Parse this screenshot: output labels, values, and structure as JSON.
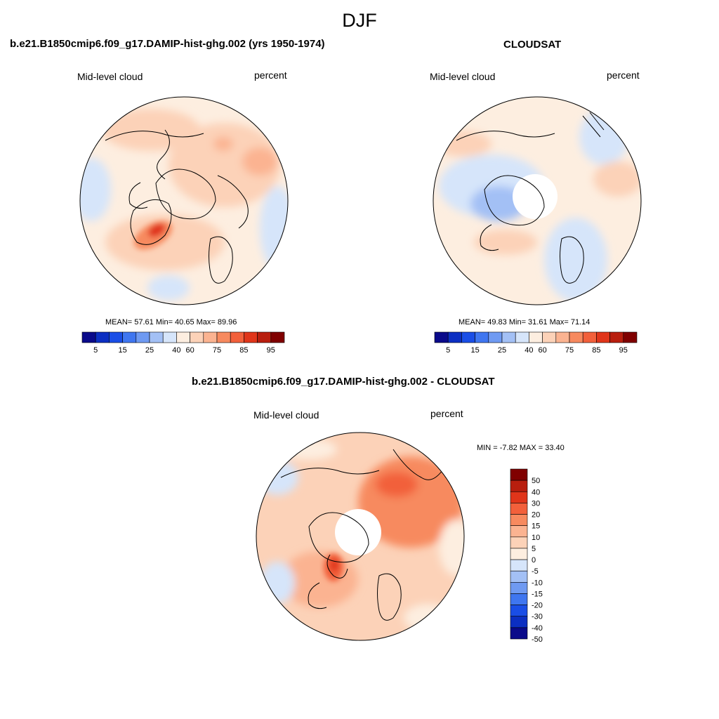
{
  "figure": {
    "season": "DJF"
  },
  "panels": {
    "model": {
      "title": "b.e21.B1850cmip6.f09_g17.DAMIP-hist-ghg.002 (yrs 1950-1974)",
      "left_label": "Mid-level cloud",
      "right_label": "percent",
      "stats": "MEAN=  57.61  Min=  40.65  Max=  89.96"
    },
    "obs": {
      "title": "CLOUDSAT",
      "left_label": "Mid-level cloud",
      "right_label": "percent",
      "stats": "MEAN=  49.83  Min=  31.61  Max=  71.14"
    },
    "diff": {
      "title": "b.e21.B1850cmip6.f09_g17.DAMIP-hist-ghg.002 - CLOUDSAT",
      "left_label": "Mid-level cloud",
      "right_label": "percent",
      "minmax": "MIN =  -7.82 MAX =  33.40"
    }
  },
  "chart_data": [
    {
      "type": "heatmap",
      "title": "b.e21.B1850cmip6.f09_g17.DAMIP-hist-ghg.002 (yrs 1950-1974)",
      "projection": "north polar stereographic",
      "variable": "Mid-level cloud",
      "units": "percent",
      "mean": 57.61,
      "min": 40.65,
      "max": 89.96,
      "colorbar_ticks": [
        "5",
        "15",
        "25",
        "40",
        "60",
        "75",
        "85",
        "95"
      ],
      "colorbar_colors": [
        "#0a0a8a",
        "#0c2fc2",
        "#1a4ee6",
        "#3f76f0",
        "#6f9af2",
        "#a3c0f5",
        "#d6e5fa",
        "#fdeee0",
        "#fcd2b8",
        "#fbb391",
        "#f78a5f",
        "#f2603b",
        "#e0351a",
        "#b81e0e",
        "#800000"
      ]
    },
    {
      "type": "heatmap",
      "title": "CLOUDSAT",
      "projection": "north polar stereographic",
      "variable": "Mid-level cloud",
      "units": "percent",
      "mean": 49.83,
      "min": 31.61,
      "max": 71.14,
      "colorbar_ticks": [
        "5",
        "15",
        "25",
        "40",
        "60",
        "75",
        "85",
        "95"
      ],
      "colorbar_colors": [
        "#0a0a8a",
        "#0c2fc2",
        "#1a4ee6",
        "#3f76f0",
        "#6f9af2",
        "#a3c0f5",
        "#d6e5fa",
        "#fdeee0",
        "#fcd2b8",
        "#fbb391",
        "#f78a5f",
        "#f2603b",
        "#e0351a",
        "#b81e0e",
        "#800000"
      ]
    },
    {
      "type": "heatmap",
      "title": "b.e21.B1850cmip6.f09_g17.DAMIP-hist-ghg.002 - CLOUDSAT",
      "projection": "north polar stereographic",
      "variable": "Mid-level cloud",
      "units": "percent",
      "min": -7.82,
      "max": 33.4,
      "colorbar_ticks": [
        "50",
        "40",
        "30",
        "20",
        "15",
        "10",
        "5",
        "0",
        "-5",
        "-10",
        "-15",
        "-20",
        "-30",
        "-40",
        "-50"
      ],
      "colorbar_colors": [
        "#800000",
        "#b81e0e",
        "#e0351a",
        "#f2603b",
        "#f78a5f",
        "#fbb391",
        "#fcd2b8",
        "#fdeee0",
        "#d6e5fa",
        "#a3c0f5",
        "#6f9af2",
        "#3f76f0",
        "#1a4ee6",
        "#0c2fc2",
        "#0a0a8a"
      ]
    }
  ]
}
